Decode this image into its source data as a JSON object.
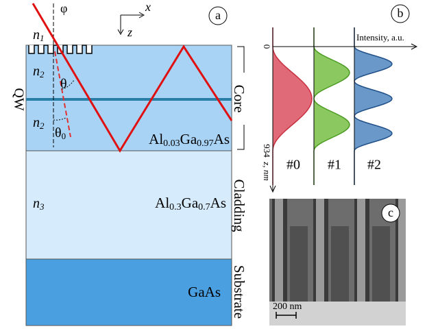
{
  "panel_a": {
    "label": "a",
    "angle_phi": "φ",
    "n1": [
      "n",
      "1"
    ],
    "n2_upper": [
      "n",
      "2"
    ],
    "n2_lower": [
      "n",
      "2"
    ],
    "n3": [
      "n",
      "3"
    ],
    "theta": "θ",
    "theta0": [
      "θ",
      "0"
    ],
    "axis_x": "x",
    "axis_z": "z",
    "qw": "QW",
    "core": {
      "name": "Core",
      "material": [
        "Al",
        "0.03",
        "Ga",
        "0.97",
        "As"
      ]
    },
    "cladding": {
      "name": "Cladding",
      "material": [
        "Al",
        "0.3",
        "Ga",
        "0.7",
        "As"
      ]
    },
    "substrate": {
      "name": "Substrate",
      "material": [
        "GaAs"
      ]
    }
  },
  "panel_b": {
    "label": "b",
    "x_axis": "Intensity, a.u.",
    "y_axis": "z, nm",
    "y_top": "0",
    "y_bottom": "934",
    "modes": [
      "#0",
      "#1",
      "#2"
    ]
  },
  "panel_c": {
    "label": "c",
    "scale": "200 nm"
  }
}
